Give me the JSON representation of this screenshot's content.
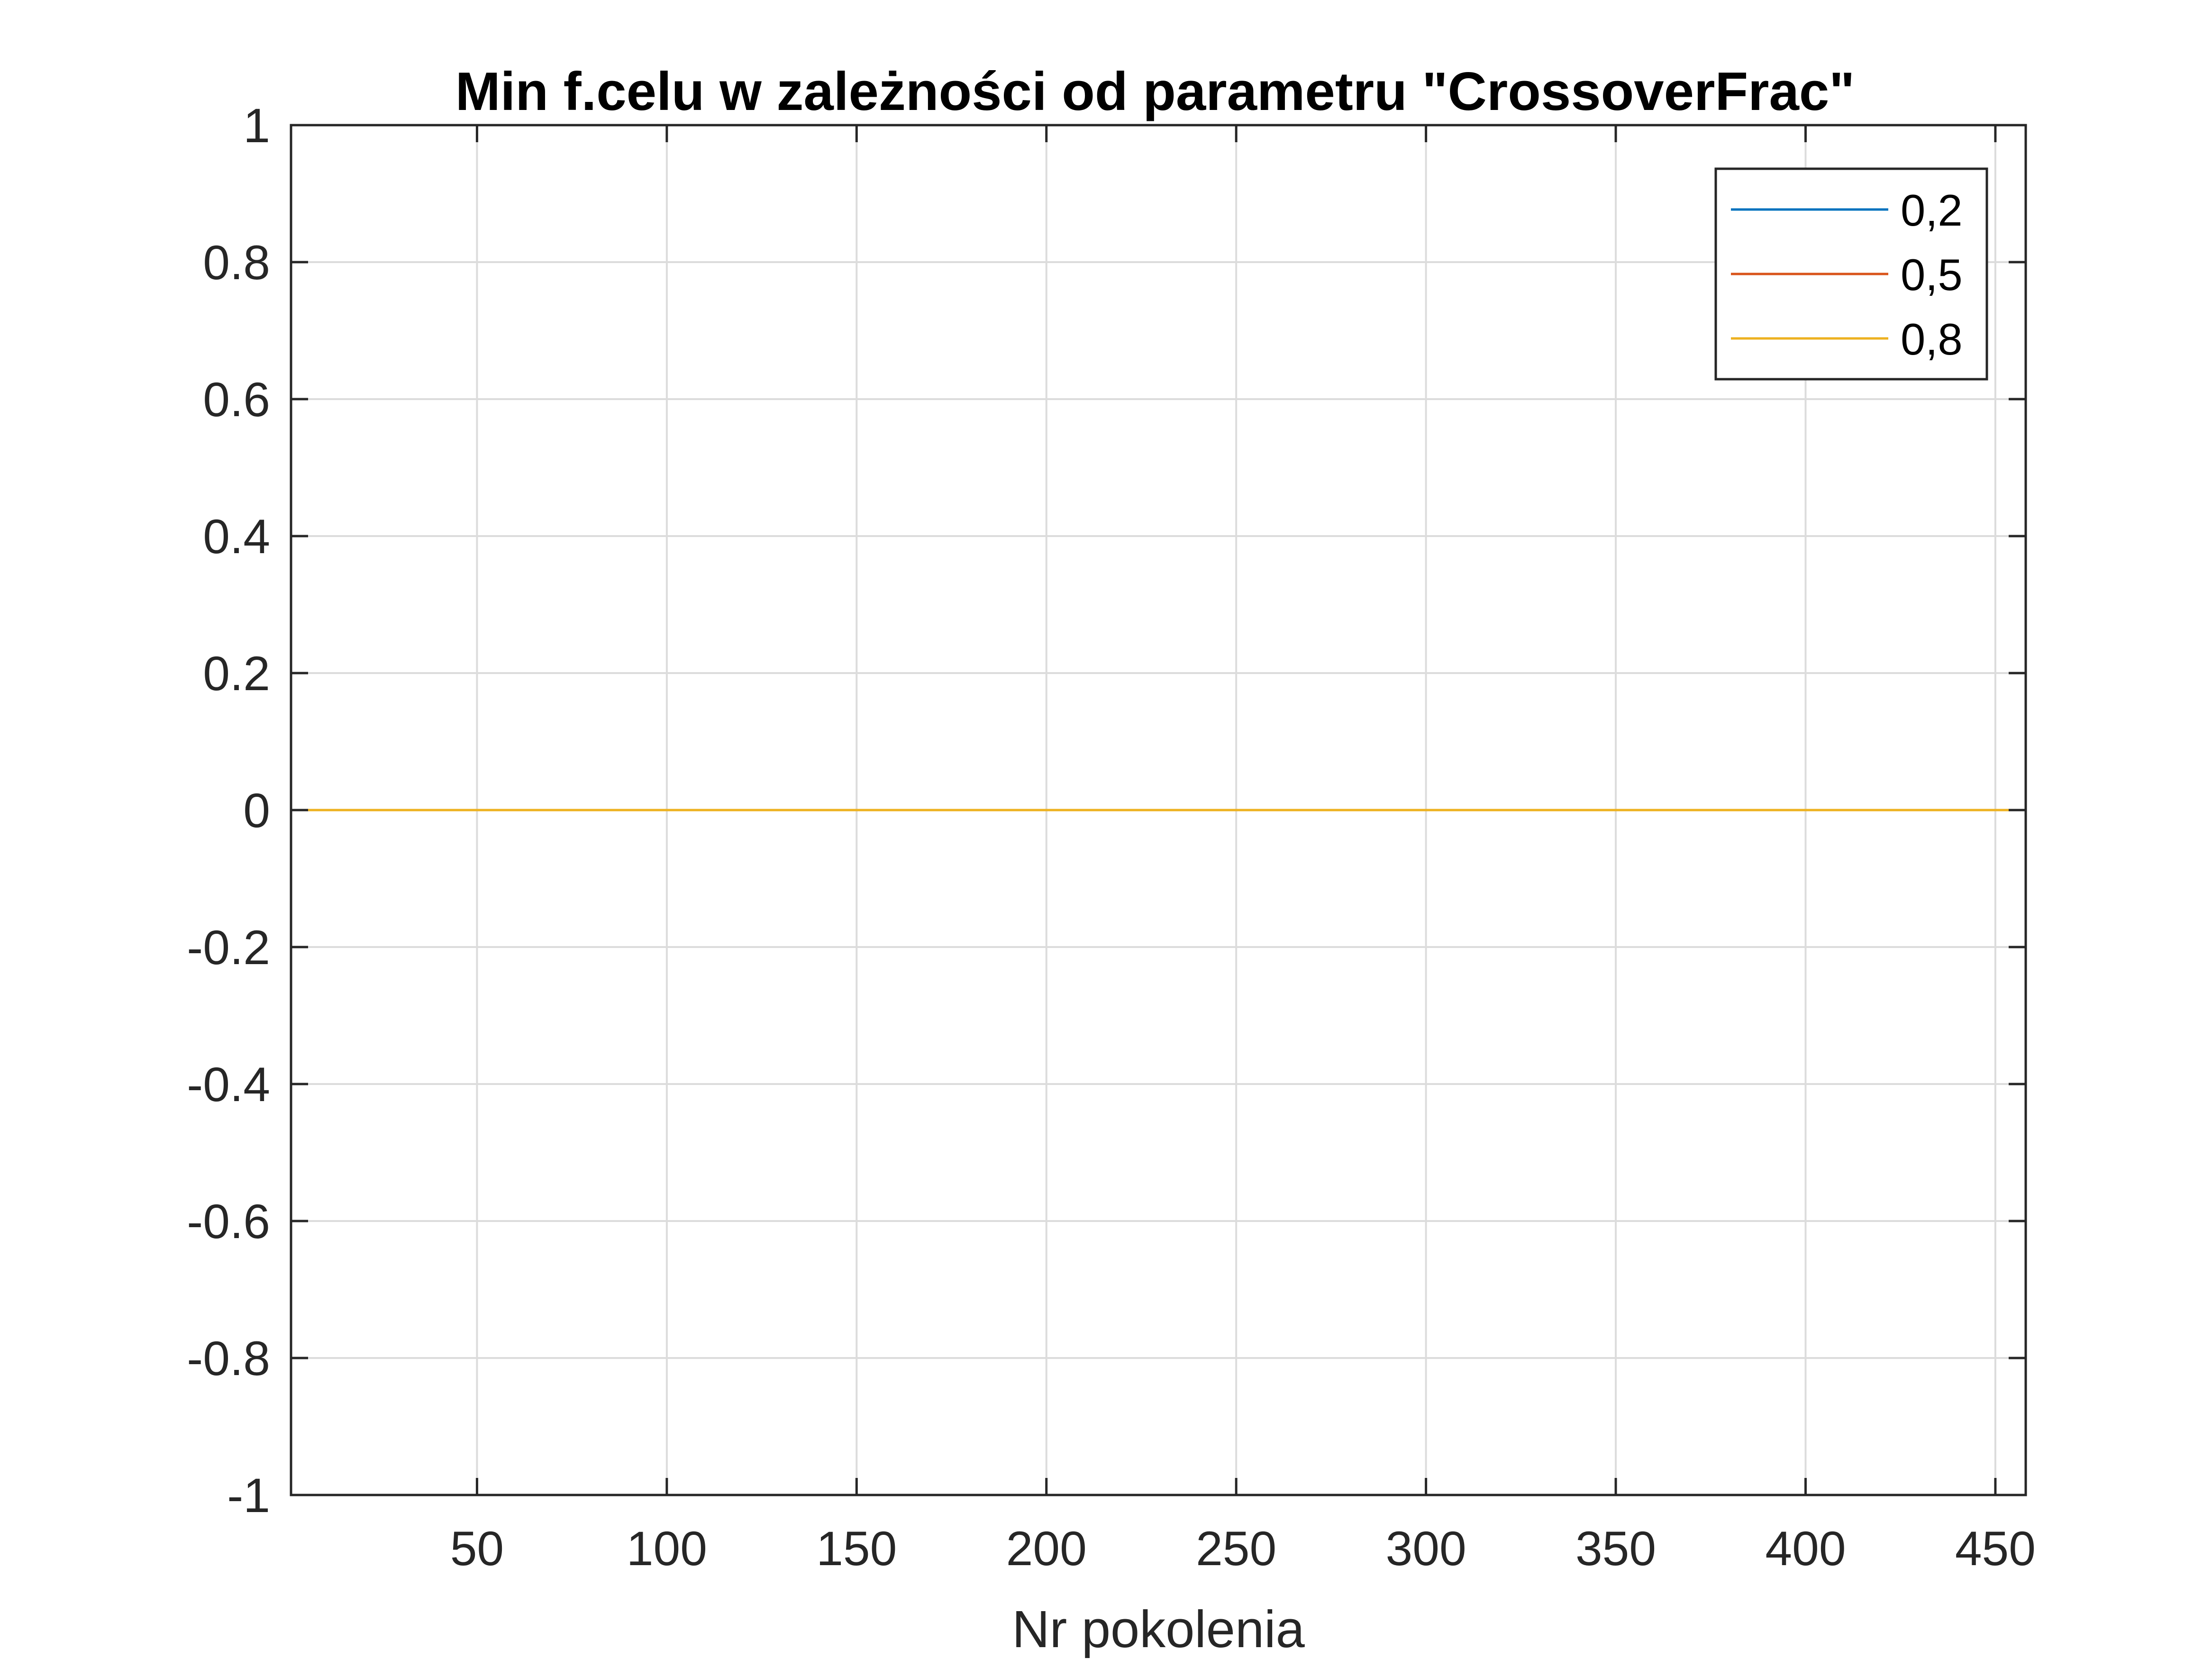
{
  "chart_data": {
    "type": "line",
    "title": "Min f.celu w zależności od parametru \"CrossoverFrac\"",
    "xlabel": "Nr pokolenia",
    "ylabel": "",
    "xlim": [
      1,
      458
    ],
    "ylim": [
      -1,
      1
    ],
    "xticks": [
      50,
      100,
      150,
      200,
      250,
      300,
      350,
      400,
      450
    ],
    "yticks": [
      -1,
      -0.8,
      -0.6,
      -0.4,
      -0.2,
      0,
      0.2,
      0.4,
      0.6,
      0.8,
      1
    ],
    "xtick_labels": [
      "50",
      "100",
      "150",
      "200",
      "250",
      "300",
      "350",
      "400",
      "450"
    ],
    "ytick_labels": [
      "-1",
      "-0.8",
      "-0.6",
      "-0.4",
      "-0.2",
      "0",
      "0.2",
      "0.4",
      "0.6",
      "0.8",
      "1"
    ],
    "grid": true,
    "legend_position": "top-right",
    "series": [
      {
        "name": "0,2",
        "color": "#0072BD",
        "x": [
          1,
          458
        ],
        "y": [
          0,
          0
        ]
      },
      {
        "name": "0,5",
        "color": "#D95319",
        "x": [
          1,
          458
        ],
        "y": [
          0,
          0
        ]
      },
      {
        "name": "0,8",
        "color": "#EDB120",
        "x": [
          1,
          458
        ],
        "y": [
          0,
          0
        ]
      }
    ]
  }
}
